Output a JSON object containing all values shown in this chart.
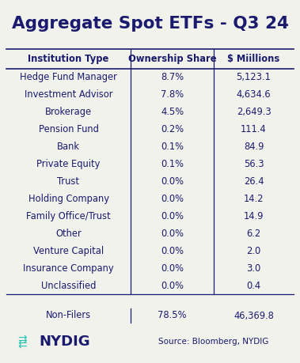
{
  "title": "Aggregate Spot ETFs - Q3 24",
  "title_color": "#1a1a6e",
  "background_color": "#f2f2ed",
  "table_text_color": "#1a1a6e",
  "header": [
    "Institution Type",
    "Ownership Share",
    "$ Miillions"
  ],
  "rows": [
    [
      "Hedge Fund Manager",
      "8.7%",
      "5,123.1"
    ],
    [
      "Investment Advisor",
      "7.8%",
      "4,634.6"
    ],
    [
      "Brokerage",
      "4.5%",
      "2,649.3"
    ],
    [
      "Pension Fund",
      "0.2%",
      "111.4"
    ],
    [
      "Bank",
      "0.1%",
      "84.9"
    ],
    [
      "Private Equity",
      "0.1%",
      "56.3"
    ],
    [
      "Trust",
      "0.0%",
      "26.4"
    ],
    [
      "Holding Company",
      "0.0%",
      "14.2"
    ],
    [
      "Family Office/Trust",
      "0.0%",
      "14.9"
    ],
    [
      "Other",
      "0.0%",
      "6.2"
    ],
    [
      "Venture Capital",
      "0.0%",
      "2.0"
    ],
    [
      "Insurance Company",
      "0.0%",
      "3.0"
    ],
    [
      "Unclassified",
      "0.0%",
      "0.4"
    ]
  ],
  "footer_row": [
    "Non-Filers",
    "78.5%",
    "46,369.8"
  ],
  "source_text": "Source: Bloomberg, NYDIG",
  "nydig_text": "NYDIG",
  "header_line_color": "#1a1a6e",
  "teal_color": "#2ec4b6"
}
